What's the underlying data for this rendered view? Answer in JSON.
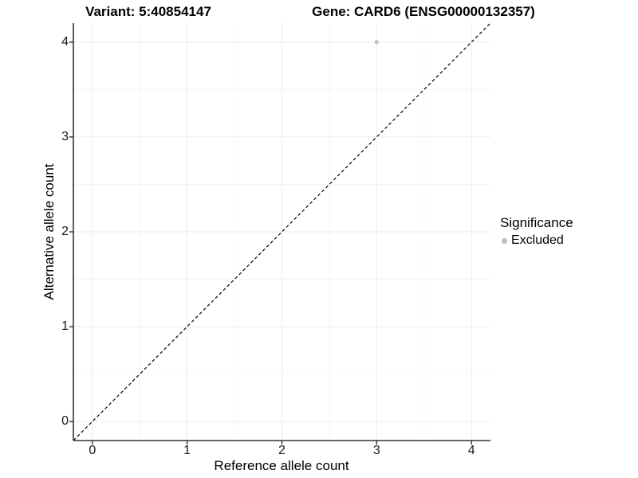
{
  "header": {
    "variant_title": "Variant: 5:40854147",
    "gene_title": "Gene: CARD6 (ENSG00000132357)"
  },
  "axes": {
    "x": {
      "label": "Reference allele count",
      "ticks": [
        "0",
        "1",
        "2",
        "3",
        "4"
      ]
    },
    "y": {
      "label": "Alternative allele count",
      "ticks": [
        "0",
        "1",
        "2",
        "3",
        "4"
      ]
    }
  },
  "legend": {
    "title": "Significance",
    "items": [
      {
        "label": "Excluded",
        "color": "#bebebe"
      }
    ]
  },
  "colors": {
    "background": "#ffffff",
    "grid_major": "#ebebeb",
    "grid_minor": "#f5f5f5",
    "axis_line": "#333333",
    "reference_line": "#000000",
    "point": "#bebebe"
  },
  "chart_data": {
    "type": "scatter",
    "title_left": "Variant: 5:40854147",
    "title_right": "Gene: CARD6 (ENSG00000132357)",
    "xlabel": "Reference allele count",
    "ylabel": "Alternative allele count",
    "xlim": [
      -0.2,
      4.2
    ],
    "ylim": [
      -0.2,
      4.2
    ],
    "x_ticks": [
      0,
      1,
      2,
      3,
      4
    ],
    "y_ticks": [
      0,
      1,
      2,
      3,
      4
    ],
    "grid": {
      "major": true,
      "minor": true,
      "minor_step": 0.5
    },
    "reference_line": {
      "slope": 1,
      "intercept": 0,
      "linetype": "dashed",
      "color": "#000000"
    },
    "series": [
      {
        "name": "Excluded",
        "color": "#bebebe",
        "point_size": 2.5,
        "points": [
          {
            "x": 3,
            "y": 4
          }
        ]
      }
    ],
    "legend_position": "right"
  }
}
